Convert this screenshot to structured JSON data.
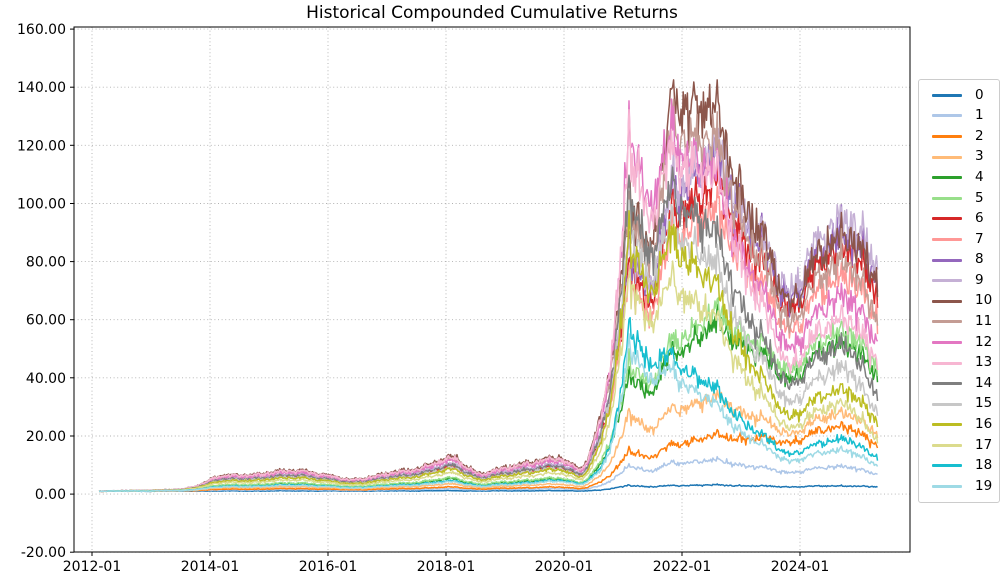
{
  "chart_data": {
    "type": "line",
    "title": "Historical Compounded Cumulative Returns",
    "xlabel": "",
    "ylabel": "",
    "grid": {
      "visible": true,
      "style": "dotted",
      "color": "#b0b0b0"
    },
    "legend_position": "outside-right",
    "axis_color": "#000000",
    "background_color": "#ffffff",
    "ylim": [
      -20,
      161
    ],
    "xlim_years": [
      2011.69,
      2025.86
    ],
    "y_ticks": [
      160,
      140,
      120,
      100,
      80,
      60,
      40,
      20,
      0,
      -20
    ],
    "y_tick_labels": [
      "160.00",
      "140.00",
      "120.00",
      "100.00",
      "80.00",
      "60.00",
      "40.00",
      "20.00",
      "0.00",
      "-20.00"
    ],
    "x_tick_years": [
      2012,
      2014,
      2016,
      2018,
      2020,
      2022,
      2024
    ],
    "x_tick_labels": [
      "2012-01",
      "2014-01",
      "2016-01",
      "2018-01",
      "2020-01",
      "2022-01",
      "2024-01"
    ],
    "data_start_year": 2012.12,
    "data_end_year": 2025.32,
    "x_samples": [
      2012.12,
      2013.5,
      2014.08,
      2015.6,
      2016.35,
      2017.0,
      2018.15,
      2018.6,
      2019.3,
      2019.95,
      2020.3,
      2020.6,
      2021.1,
      2021.45,
      2021.85,
      2022.7,
      2023.8,
      2024.8,
      2025.32
    ],
    "texture": {
      "shared_noise_amp": 0.08,
      "series_noise_amp": 0.045,
      "jitter_amp": 0.025,
      "value_clamp_max": 142.5,
      "value_clamp_min": 0.25
    },
    "series": [
      {
        "name": "0",
        "color": "#1f77b4",
        "values": [
          1.0,
          1.0,
          1.07,
          1.11,
          1.06,
          1.08,
          1.17,
          1.08,
          1.14,
          1.16,
          1.11,
          1.3,
          3.2,
          2.4,
          3.0,
          3.1,
          2.5,
          2.9,
          2.4
        ]
      },
      {
        "name": "1",
        "color": "#aec7e8",
        "values": [
          1.0,
          1.04,
          1.36,
          1.53,
          1.28,
          1.43,
          1.85,
          1.43,
          1.71,
          1.82,
          1.57,
          2.7,
          10.5,
          7.5,
          11.0,
          11.4,
          7.5,
          10.0,
          6.5
        ]
      },
      {
        "name": "2",
        "color": "#ff7f0e",
        "values": [
          1.0,
          1.07,
          1.61,
          1.91,
          1.48,
          1.73,
          2.45,
          1.73,
          2.21,
          2.39,
          1.97,
          3.9,
          16.0,
          12.0,
          17.5,
          20.0,
          18.0,
          24.5,
          16.0
        ]
      },
      {
        "name": "3",
        "color": "#ffbb78",
        "values": [
          1.0,
          1.12,
          2.04,
          2.55,
          1.83,
          2.24,
          3.48,
          2.24,
          3.07,
          3.38,
          2.66,
          6.0,
          30.0,
          21.0,
          30.0,
          32.6,
          21.0,
          29.3,
          20.0
        ]
      },
      {
        "name": "4",
        "color": "#2ca02c",
        "values": [
          1.0,
          1.22,
          2.8,
          3.7,
          2.44,
          3.16,
          5.32,
          3.16,
          4.6,
          5.14,
          3.88,
          9.6,
          44.0,
          33.0,
          50.0,
          58.0,
          40.0,
          55.0,
          39.0
        ]
      },
      {
        "name": "5",
        "color": "#98df8a",
        "values": [
          1.0,
          1.23,
          2.95,
          3.93,
          2.56,
          3.34,
          5.68,
          3.34,
          4.9,
          5.49,
          4.12,
          10.4,
          48.0,
          36.0,
          54.0,
          62.0,
          43.0,
          59.0,
          42.0
        ]
      },
      {
        "name": "6",
        "color": "#d62728",
        "values": [
          1.0,
          1.42,
          4.54,
          6.3,
          3.83,
          5.24,
          9.48,
          5.24,
          8.07,
          9.13,
          6.66,
          18.0,
          85.0,
          62.0,
          100.0,
          103.0,
          64.0,
          90.0,
          66.0
        ]
      },
      {
        "name": "7",
        "color": "#ff9896",
        "values": [
          1.0,
          1.4,
          4.36,
          6.03,
          3.68,
          5.03,
          9.05,
          5.03,
          7.71,
          8.72,
          6.37,
          17.1,
          80.0,
          58.0,
          93.0,
          94.0,
          57.0,
          79.0,
          58.0
        ]
      },
      {
        "name": "8",
        "color": "#9467bd",
        "values": [
          1.0,
          1.47,
          4.9,
          6.84,
          4.12,
          5.67,
          10.3,
          5.67,
          8.79,
          9.95,
          7.23,
          19.7,
          90.0,
          66.0,
          108.0,
          112.0,
          68.0,
          95.0,
          71.0
        ]
      },
      {
        "name": "9",
        "color": "#c5b0d5",
        "values": [
          1.0,
          1.48,
          4.97,
          6.95,
          4.17,
          5.76,
          10.5,
          5.76,
          8.93,
          10.1,
          7.34,
          20.0,
          92.0,
          68.0,
          110.0,
          116.0,
          71.0,
          100.0,
          75.0
        ]
      },
      {
        "name": "10",
        "color": "#8c564b",
        "values": [
          1.0,
          1.6,
          6.0,
          8.5,
          5.0,
          7.0,
          13.0,
          7.0,
          11.0,
          12.5,
          9.0,
          25.0,
          110.0,
          80.0,
          141.0,
          125.0,
          67.0,
          94.0,
          70.0
        ]
      },
      {
        "name": "11",
        "color": "#c49c94",
        "values": [
          1.0,
          1.55,
          5.6,
          7.9,
          4.68,
          6.53,
          12.1,
          6.53,
          10.2,
          11.6,
          8.37,
          23.1,
          105.0,
          76.0,
          130.0,
          114.0,
          60.0,
          85.0,
          58.0
        ]
      },
      {
        "name": "12",
        "color": "#e377c2",
        "values": [
          1.0,
          1.53,
          5.43,
          7.64,
          4.54,
          6.32,
          11.6,
          6.32,
          9.86,
          11.2,
          8.09,
          22.3,
          135.0,
          95.0,
          126.0,
          103.0,
          51.0,
          72.0,
          50.0
        ]
      },
      {
        "name": "13",
        "color": "#f7b6d2",
        "values": [
          1.0,
          1.57,
          5.79,
          8.18,
          4.83,
          6.7,
          12.5,
          6.7,
          10.6,
          12.0,
          8.66,
          24.0,
          130.0,
          90.0,
          120.0,
          103.0,
          45.0,
          64.0,
          44.0
        ]
      },
      {
        "name": "14",
        "color": "#7f7f7f",
        "values": [
          1.0,
          1.45,
          4.72,
          6.57,
          3.97,
          5.46,
          9.92,
          5.46,
          8.43,
          9.54,
          6.95,
          18.8,
          112.0,
          78.0,
          107.0,
          83.0,
          38.0,
          54.0,
          33.0
        ]
      },
      {
        "name": "15",
        "color": "#c7c7c7",
        "values": [
          1.0,
          1.4,
          4.36,
          6.03,
          3.68,
          5.03,
          9.05,
          5.03,
          7.71,
          8.72,
          6.37,
          17.1,
          100.0,
          70.0,
          95.0,
          73.0,
          32.0,
          46.0,
          27.0
        ]
      },
      {
        "name": "16",
        "color": "#bcbd22",
        "values": [
          1.0,
          1.38,
          4.18,
          5.77,
          3.54,
          4.82,
          8.63,
          4.82,
          7.36,
          8.32,
          6.09,
          16.3,
          95.0,
          66.0,
          90.0,
          66.0,
          27.0,
          38.0,
          24.0
        ]
      },
      {
        "name": "17",
        "color": "#dbdb8d",
        "values": [
          1.0,
          1.32,
          3.65,
          4.97,
          3.12,
          4.17,
          7.35,
          4.17,
          6.29,
          7.08,
          5.23,
          13.7,
          80.0,
          56.0,
          75.0,
          56.0,
          23.0,
          33.0,
          18.0
        ]
      },
      {
        "name": "18",
        "color": "#17becf",
        "values": [
          1.0,
          1.18,
          2.5,
          3.25,
          2.2,
          2.8,
          4.6,
          2.8,
          4.0,
          4.75,
          3.7,
          8.2,
          62.0,
          43.0,
          48.0,
          33.0,
          14.0,
          20.0,
          12.0
        ]
      },
      {
        "name": "19",
        "color": "#9edae5",
        "values": [
          1.0,
          1.16,
          2.35,
          3.03,
          2.08,
          2.62,
          4.24,
          2.62,
          3.7,
          4.38,
          3.43,
          7.5,
          55.0,
          38.0,
          43.0,
          28.0,
          11.5,
          16.0,
          9.5
        ]
      }
    ]
  }
}
